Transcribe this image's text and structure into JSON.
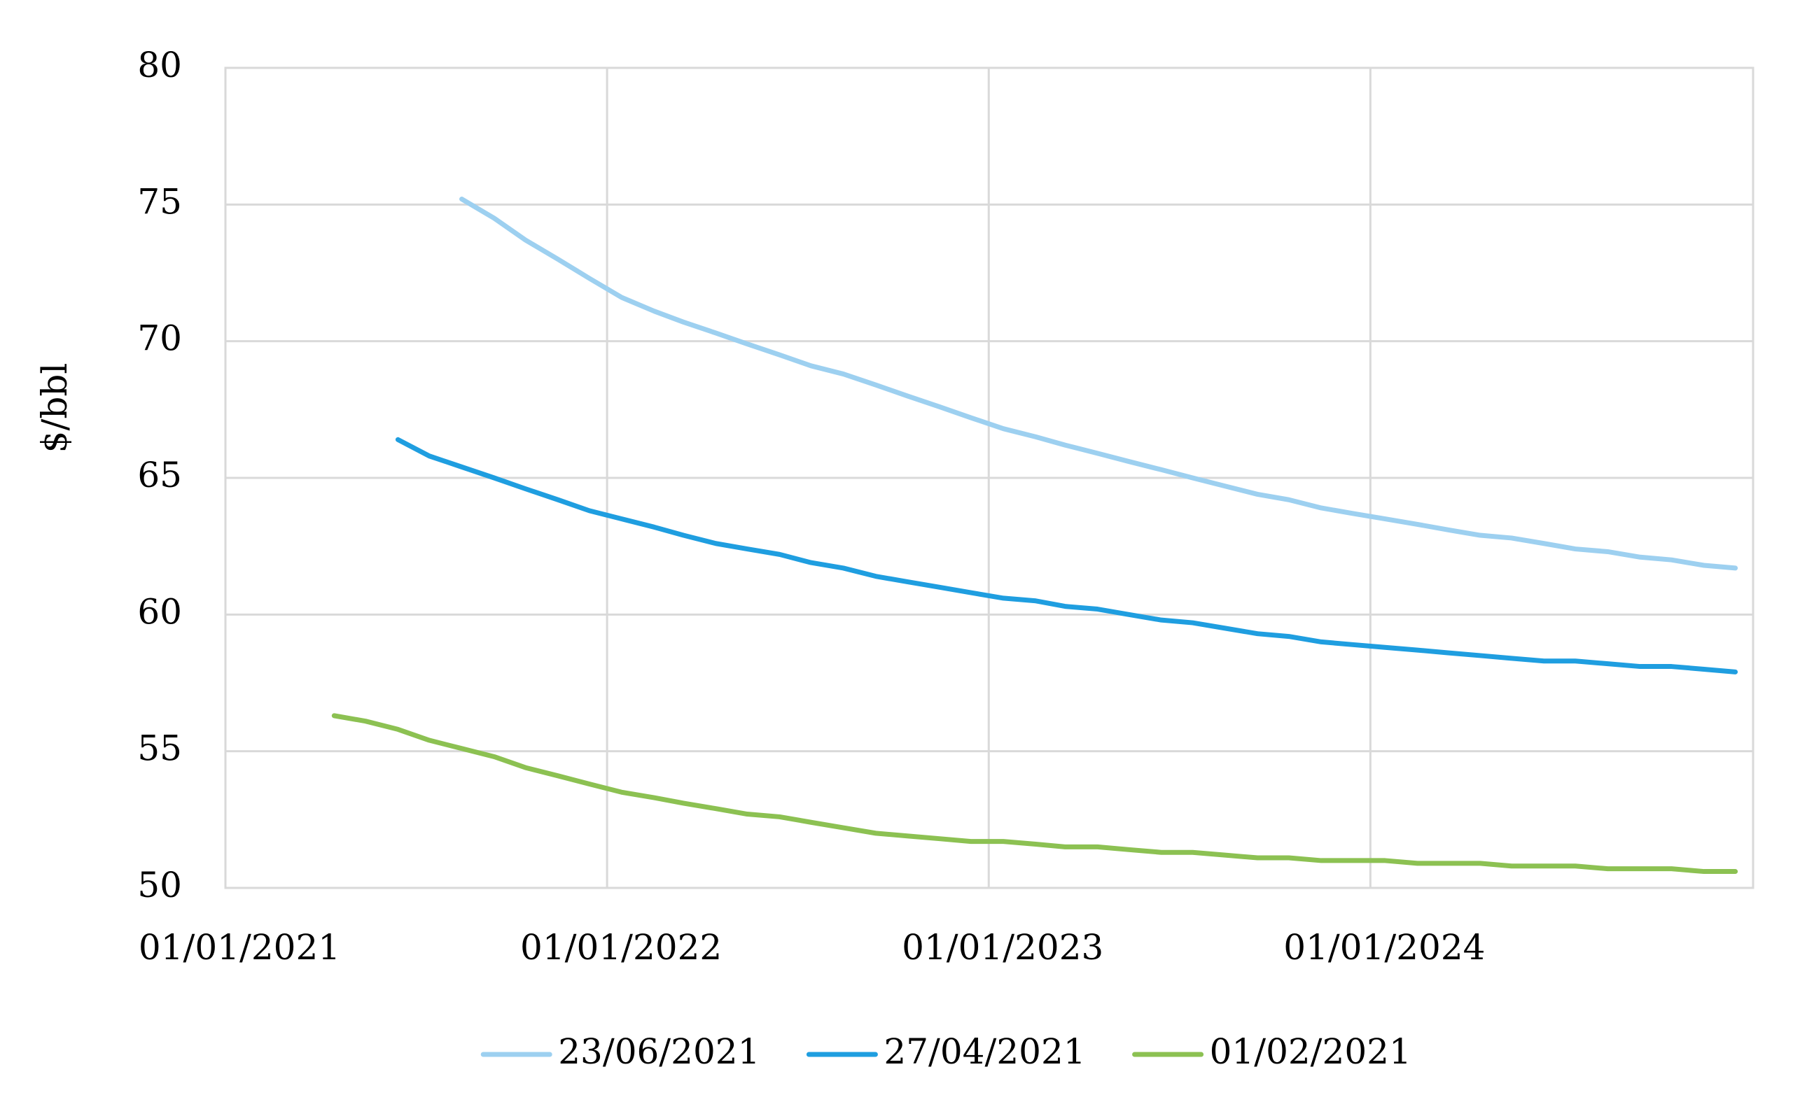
{
  "chart_data": {
    "type": "line",
    "y_label": "$/bbl",
    "x": [
      "15/04/2021",
      "15/05/2021",
      "15/06/2021",
      "15/07/2021",
      "15/08/2021",
      "15/09/2021",
      "15/10/2021",
      "15/11/2021",
      "15/12/2021",
      "15/01/2022",
      "15/02/2022",
      "15/03/2022",
      "15/04/2022",
      "15/05/2022",
      "15/06/2022",
      "15/07/2022",
      "15/08/2022",
      "15/09/2022",
      "15/10/2022",
      "15/11/2022",
      "15/12/2022",
      "15/01/2023",
      "15/02/2023",
      "15/03/2023",
      "15/04/2023",
      "15/05/2023",
      "15/06/2023",
      "15/07/2023",
      "15/08/2023",
      "15/09/2023",
      "15/10/2023",
      "15/11/2023",
      "15/12/2023",
      "15/01/2024",
      "15/02/2024",
      "15/03/2024",
      "15/04/2024",
      "15/05/2024",
      "15/06/2024",
      "15/07/2024",
      "15/08/2024",
      "15/09/2024",
      "15/10/2024",
      "15/11/2024",
      "15/12/2024"
    ],
    "series": [
      {
        "name": "23/06/2021",
        "color": "#9dd0f0",
        "values": [
          null,
          null,
          null,
          null,
          75.2,
          74.5,
          73.7,
          73.0,
          72.3,
          71.6,
          71.1,
          70.7,
          70.3,
          69.9,
          69.5,
          69.1,
          68.8,
          68.4,
          68.0,
          67.6,
          67.2,
          66.8,
          66.5,
          66.2,
          65.9,
          65.6,
          65.3,
          65.0,
          64.7,
          64.4,
          64.2,
          63.9,
          63.7,
          63.5,
          63.3,
          63.1,
          62.9,
          62.8,
          62.6,
          62.4,
          62.3,
          62.1,
          62.0,
          61.8,
          61.7
        ]
      },
      {
        "name": "27/04/2021",
        "color": "#1f9ee0",
        "values": [
          null,
          null,
          66.4,
          65.8,
          65.4,
          65.0,
          64.6,
          64.2,
          63.8,
          63.5,
          63.2,
          62.9,
          62.6,
          62.4,
          62.2,
          61.9,
          61.7,
          61.4,
          61.2,
          61.0,
          60.8,
          60.6,
          60.5,
          60.3,
          60.2,
          60.0,
          59.8,
          59.7,
          59.5,
          59.3,
          59.2,
          59.0,
          58.9,
          58.8,
          58.7,
          58.6,
          58.5,
          58.4,
          58.3,
          58.3,
          58.2,
          58.1,
          58.1,
          58.0,
          57.9
        ]
      },
      {
        "name": "01/02/2021",
        "color": "#8cc152",
        "values": [
          56.3,
          56.1,
          55.8,
          55.4,
          55.1,
          54.8,
          54.4,
          54.1,
          53.8,
          53.5,
          53.3,
          53.1,
          52.9,
          52.7,
          52.6,
          52.4,
          52.2,
          52.0,
          51.9,
          51.8,
          51.7,
          51.7,
          51.6,
          51.5,
          51.5,
          51.4,
          51.3,
          51.3,
          51.2,
          51.1,
          51.1,
          51.0,
          51.0,
          51.0,
          50.9,
          50.9,
          50.9,
          50.8,
          50.8,
          50.8,
          50.7,
          50.7,
          50.7,
          50.6,
          50.6
        ]
      }
    ],
    "xlim": [
      "01/01/2021",
      "01/01/2025"
    ],
    "xticks": [
      "01/01/2021",
      "01/01/2022",
      "01/01/2023",
      "01/01/2024"
    ],
    "ylim": [
      50,
      80
    ],
    "yticks": [
      50,
      55,
      60,
      65,
      70,
      75,
      80
    ],
    "grid": true,
    "legend": "bottom"
  }
}
